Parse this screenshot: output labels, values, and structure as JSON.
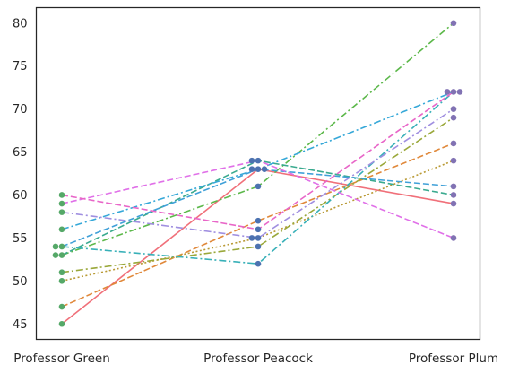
{
  "chart_data": {
    "type": "line",
    "title": "",
    "xlabel": "",
    "ylabel": "",
    "categories": [
      "Professor Green",
      "Professor Peacock",
      "Professor Plum"
    ],
    "ylim": [
      43.2,
      81.8
    ],
    "yticks": [
      45,
      50,
      55,
      60,
      65,
      70,
      75,
      80
    ],
    "grid": false,
    "legend": "none",
    "marker_colors": [
      "#55a868",
      "#4c72b0",
      "#8172b3"
    ],
    "series": [
      {
        "values": [
          45,
          63,
          59
        ],
        "color": "#f0707a",
        "dash": "solid"
      },
      {
        "values": [
          47,
          57,
          66
        ],
        "color": "#e0883a",
        "dash": "dashed"
      },
      {
        "values": [
          50,
          55,
          64
        ],
        "color": "#b99a35",
        "dash": "dotted"
      },
      {
        "values": [
          51,
          54,
          69
        ],
        "color": "#9aa83a",
        "dash": "dashdot"
      },
      {
        "values": [
          53,
          61,
          80
        ],
        "color": "#5cb84a",
        "dash": "dashdot"
      },
      {
        "values": [
          53,
          64,
          60
        ],
        "color": "#3aaa8f",
        "dash": "dashed"
      },
      {
        "values": [
          54,
          52,
          72
        ],
        "color": "#38b0b8",
        "dash": "dashdot"
      },
      {
        "values": [
          56,
          63,
          72
        ],
        "color": "#36a8d8",
        "dash": "dashdot"
      },
      {
        "values": [
          54,
          63,
          61
        ],
        "color": "#3fa0d8",
        "dash": "dashed"
      },
      {
        "values": [
          58,
          55,
          70
        ],
        "color": "#a08fe0",
        "dash": "dashdot"
      },
      {
        "values": [
          59,
          64,
          55
        ],
        "color": "#e070e8",
        "dash": "dashed"
      },
      {
        "values": [
          60,
          56,
          72
        ],
        "color": "#e866c8",
        "dash": "dashed"
      }
    ]
  }
}
